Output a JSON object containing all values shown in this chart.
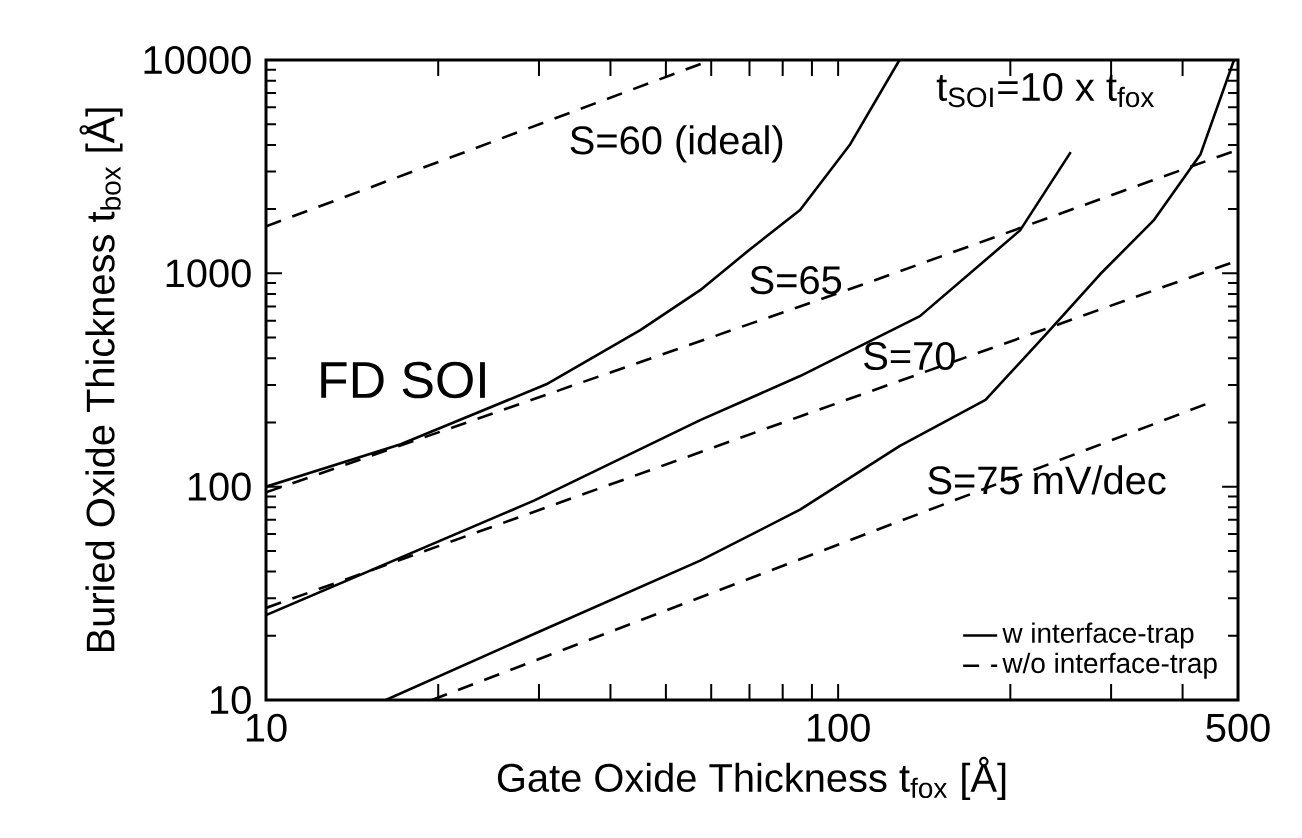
{
  "chart_data": {
    "type": "line",
    "xlabel": "Gate Oxide Thickness  t$_{fox}$  [Å]",
    "ylabel": "Buried Oxide Thickness  t$_{box}$ [Å]",
    "log": "xy",
    "xlim": [
      10,
      500
    ],
    "ylim": [
      10,
      10000
    ],
    "xticks": [
      10,
      {
        "value": 20,
        "label": null
      },
      {
        "value": 30,
        "label": null
      },
      {
        "value": 40,
        "label": null
      },
      {
        "value": 50,
        "label": null
      },
      {
        "value": 60,
        "label": null
      },
      {
        "value": 70,
        "label": null
      },
      {
        "value": 80,
        "label": null
      },
      {
        "value": 90,
        "label": null
      },
      100,
      {
        "value": 200,
        "label": null
      },
      {
        "value": 300,
        "label": null
      },
      {
        "value": 400,
        "label": null
      },
      500
    ],
    "yticks": [
      10,
      100,
      1000,
      10000
    ],
    "legend": "bottom right",
    "series": [
      {
        "name": "w interface-trap",
        "color": "#000000",
        "line_style": "solid",
        "x": [
          10,
          17.2,
          30.9,
          45.1,
          57.4,
          70,
          85.8,
          105,
          128
        ],
        "values": [
          100,
          158,
          302,
          542,
          834,
          1290,
          1980,
          4030,
          10000
        ]
      },
      {
        "color": "#000000",
        "line_style": "solid",
        "x": [
          10,
          29.4,
          57.4,
          85.8,
          139,
          208,
          255
        ],
        "values": [
          25,
          86,
          205,
          330,
          630,
          1590,
          3700
        ]
      },
      {
        "color": "#000000",
        "line_style": "solid",
        "x": [
          16.2,
          29.4,
          57.4,
          85.8,
          128,
          181,
          231,
          287,
          356,
          430,
          492
        ],
        "values": [
          10,
          20.4,
          45,
          78,
          155,
          255,
          519,
          990,
          1770,
          3620,
          10000
        ]
      },
      {
        "name": "w/o interface-trap",
        "color": "#000000",
        "line_style": "dashed",
        "x": [
          10,
          60
        ],
        "values": [
          1660,
          10000
        ]
      },
      {
        "color": "#000000",
        "line_style": "dashed",
        "x": [
          10,
          111,
          500
        ],
        "values": [
          94,
          890,
          3800
        ]
      },
      {
        "color": "#000000",
        "line_style": "dashed",
        "x": [
          10,
          86,
          500
        ],
        "values": [
          27,
          214,
          1150
        ]
      },
      {
        "color": "#000000",
        "line_style": "dashed",
        "x": [
          19.5,
          440
        ],
        "values": [
          10,
          244
        ]
      }
    ],
    "annotations": [
      "S=60 (ideal)",
      "S=65",
      "S=70",
      "S=75 mV/dec",
      "t$_{SOI}$=10 x t$_{fox}$",
      "FD SOI"
    ]
  }
}
